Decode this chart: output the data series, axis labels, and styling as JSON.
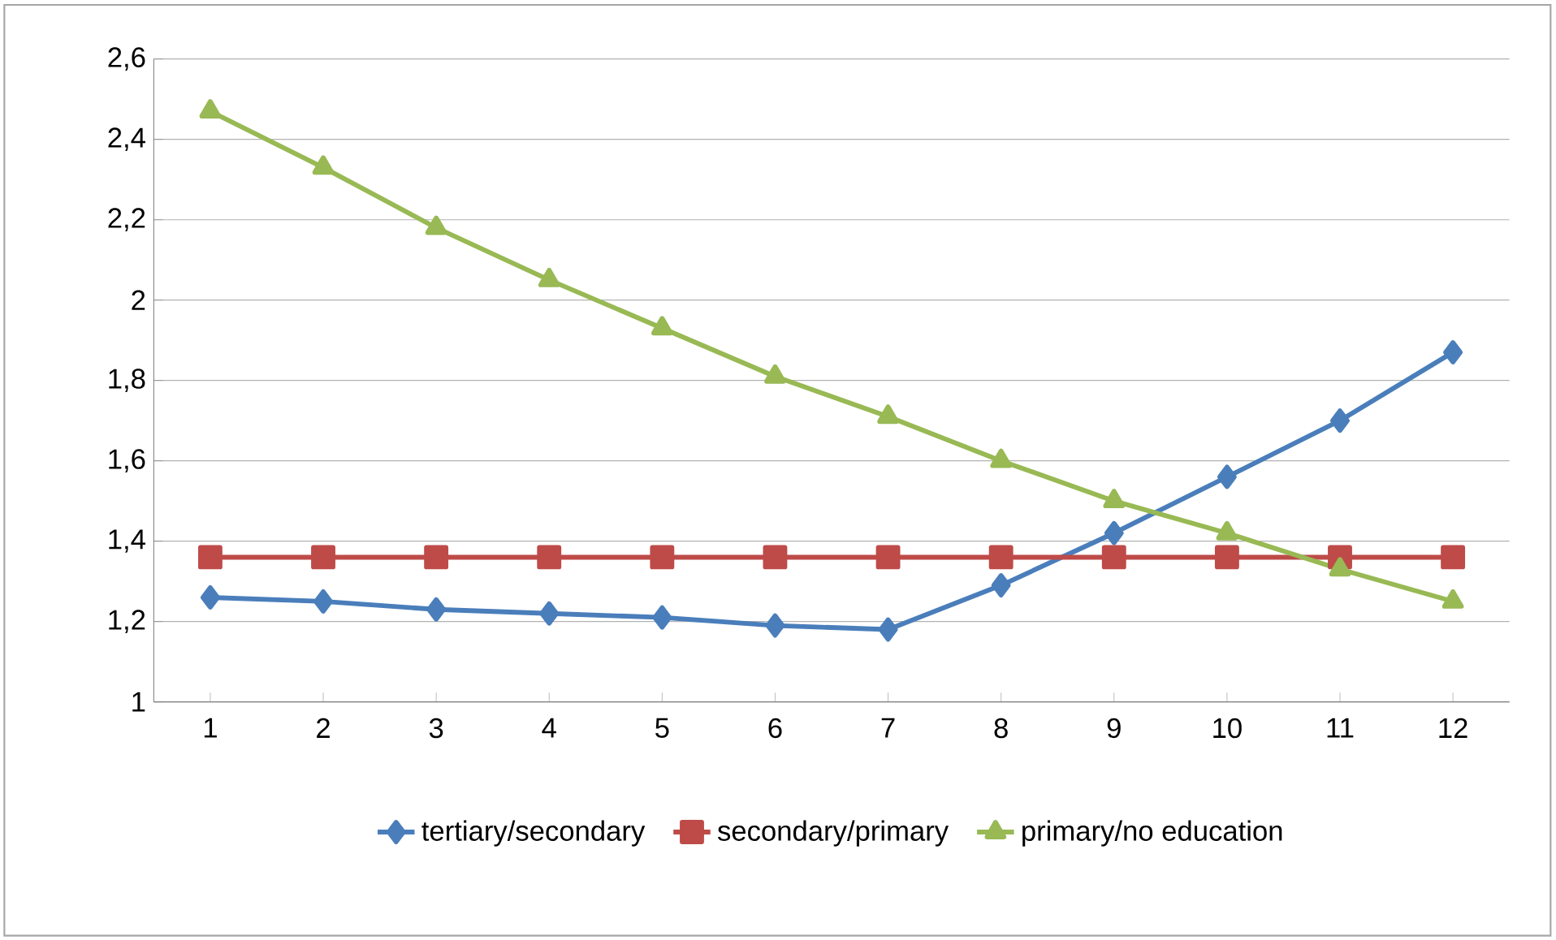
{
  "chart_data": {
    "type": "line",
    "categories": [
      "1",
      "2",
      "3",
      "4",
      "5",
      "6",
      "7",
      "8",
      "9",
      "10",
      "11",
      "12"
    ],
    "series": [
      {
        "name": "tertiary/secondary",
        "color": "#4a7ebb",
        "marker": "diamond",
        "values": [
          1.26,
          1.25,
          1.23,
          1.22,
          1.21,
          1.19,
          1.18,
          1.29,
          1.42,
          1.56,
          1.7,
          1.87
        ]
      },
      {
        "name": "secondary/primary",
        "color": "#be4b48",
        "marker": "square",
        "values": [
          1.36,
          1.36,
          1.36,
          1.36,
          1.36,
          1.36,
          1.36,
          1.36,
          1.36,
          1.36,
          1.36,
          1.36
        ]
      },
      {
        "name": "primary/no education",
        "color": "#98b954",
        "marker": "triangle",
        "values": [
          2.47,
          2.33,
          2.18,
          2.05,
          1.93,
          1.81,
          1.71,
          1.6,
          1.5,
          1.42,
          1.33,
          1.25
        ]
      }
    ],
    "ylim": [
      1,
      2.6
    ],
    "yticks": [
      1,
      {
        "value": 1.2,
        "label": "1,2"
      },
      {
        "value": 1.4,
        "label": "1,4"
      },
      {
        "value": 1.6,
        "label": "1,6"
      },
      {
        "value": 1.8,
        "label": "1,8"
      },
      2,
      {
        "value": 2.2,
        "label": "2,2"
      },
      {
        "value": 2.4,
        "label": "2,4"
      },
      {
        "value": 2.6,
        "label": "2,6"
      }
    ],
    "grid": "y",
    "legend": "bottom",
    "line_style": "solid"
  }
}
